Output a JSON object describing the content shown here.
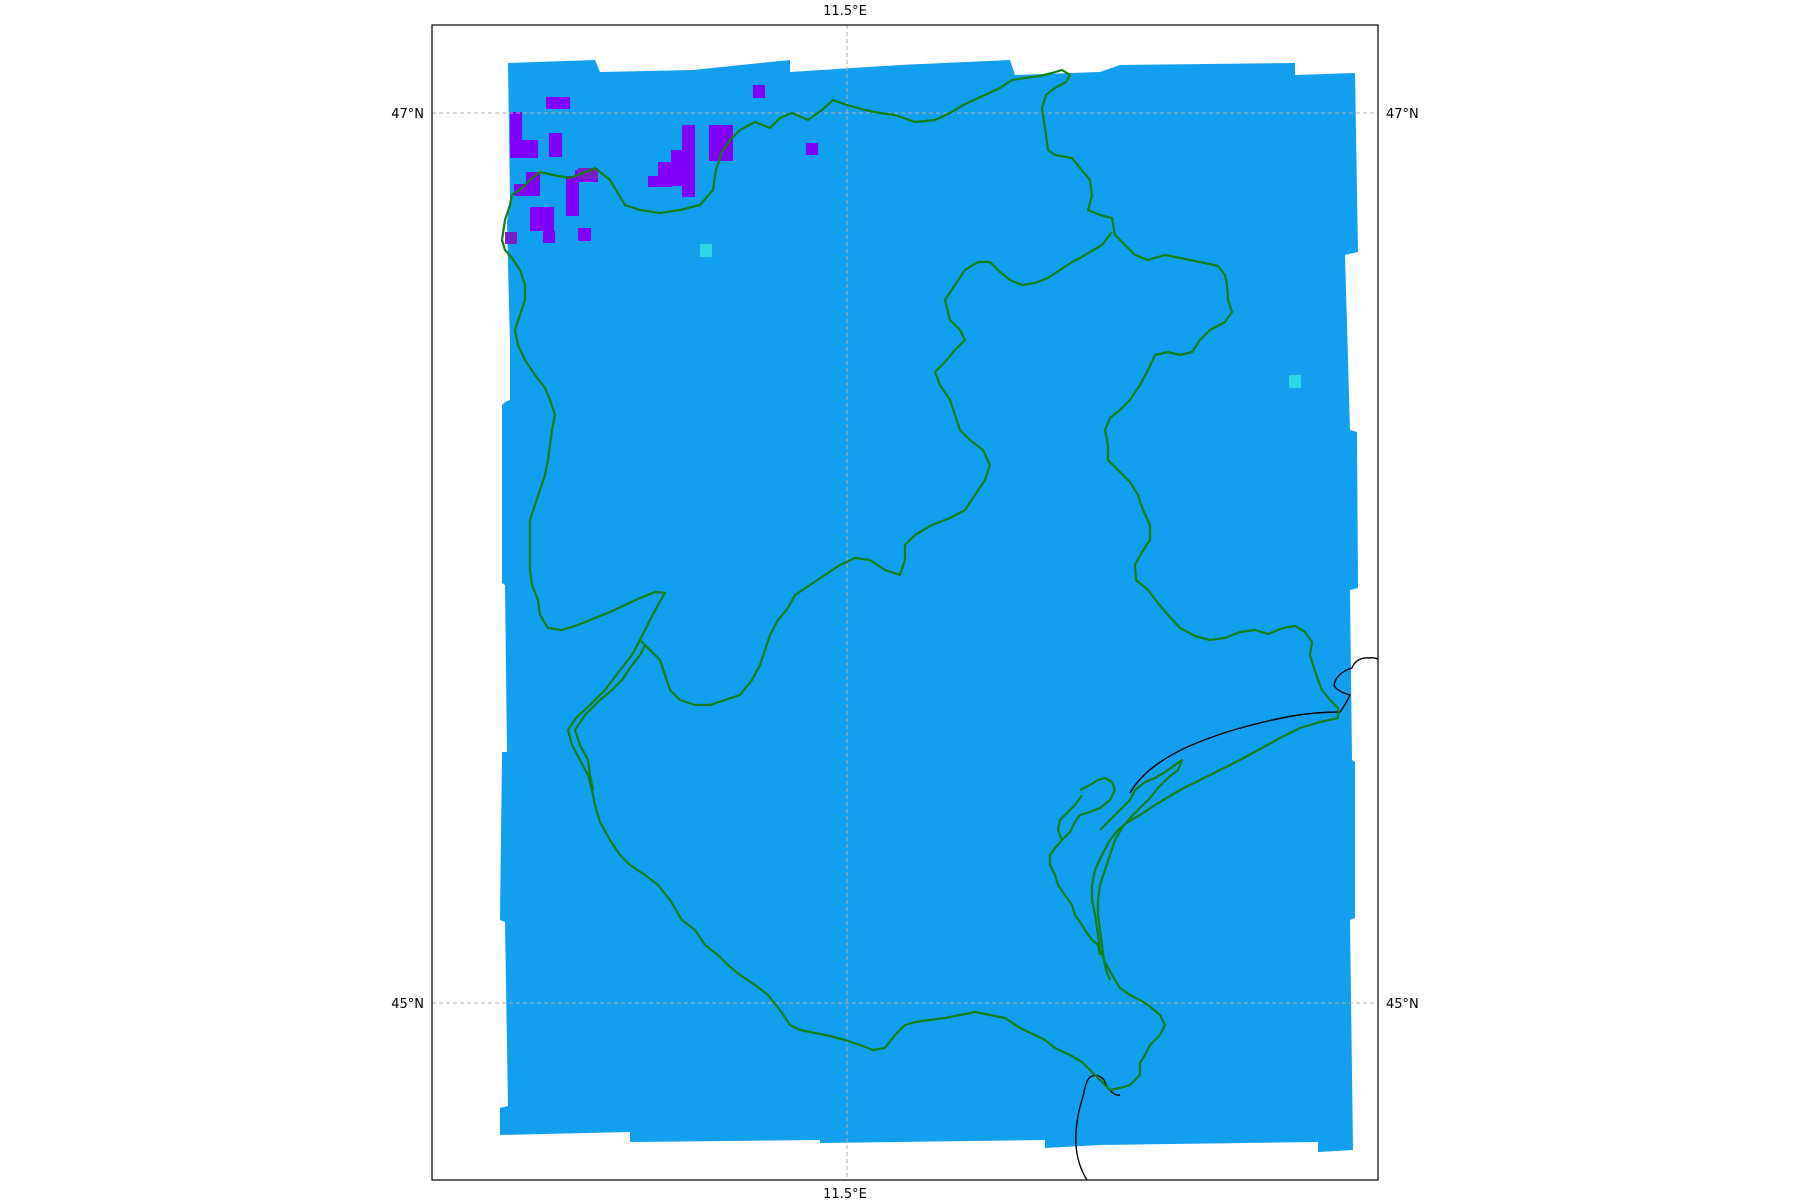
{
  "map": {
    "longitude_labels": {
      "top": "11.5°E",
      "bottom": "11.5°E"
    },
    "latitude_labels": {
      "upper_left": "47°N",
      "upper_right": "47°N",
      "lower_left": "45°N",
      "lower_right": "45°N"
    },
    "gridlines": "dashed",
    "colors": {
      "raster_fill": "#129fee",
      "anomaly_purple": "#8100f6",
      "anomaly_dark_purple": "#7c1ec8",
      "anomaly_cyan": "#2ed7e6",
      "administrative_border": "#118011",
      "coastline": "#000000",
      "frame": "#000000"
    }
  }
}
